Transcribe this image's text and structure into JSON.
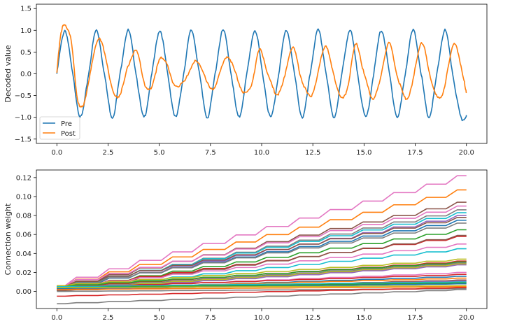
{
  "chart_data": [
    {
      "type": "line",
      "ylabel": "Decoded value",
      "xlim": [
        -1.0,
        21.0
      ],
      "ylim": [
        -1.6,
        1.6
      ],
      "x_ticks": [
        0.0,
        2.5,
        5.0,
        7.5,
        10.0,
        12.5,
        15.0,
        17.5,
        20.0
      ],
      "x_tick_labels": [
        "0.0",
        "2.5",
        "5.0",
        "7.5",
        "10.0",
        "12.5",
        "15.0",
        "17.5",
        "20.0"
      ],
      "y_ticks": [
        -1.5,
        -1.0,
        -0.5,
        0.0,
        0.5,
        1.0,
        1.5
      ],
      "y_tick_labels": [
        "−1.5",
        "−1.0",
        "−0.5",
        "0.0",
        "0.5",
        "1.0",
        "1.5"
      ],
      "grid": false,
      "legend": "lower-left",
      "series": [
        {
          "name": "Pre",
          "color": "#1f77b4",
          "x": [
            0.0,
            0.39,
            0.77,
            1.16,
            1.55,
            1.93,
            2.32,
            2.71,
            3.09,
            3.48,
            3.87,
            4.25,
            4.64,
            5.03,
            5.41,
            5.8,
            6.19,
            6.57,
            6.96,
            7.35,
            7.73,
            8.12,
            8.51,
            8.89,
            9.28,
            9.67,
            10.05,
            10.44,
            10.83,
            11.21,
            11.6,
            11.99,
            12.37,
            12.76,
            13.15,
            13.53,
            13.92,
            14.31,
            14.69,
            15.08,
            15.47,
            15.85,
            16.24,
            16.63,
            17.01,
            17.4,
            17.79,
            18.17,
            18.56,
            18.95,
            19.33,
            19.72,
            20.0
          ],
          "y": [
            0.0,
            1.0,
            0.0,
            -1.0,
            0.0,
            1.0,
            0.0,
            -1.0,
            0.0,
            1.0,
            0.0,
            -1.0,
            0.0,
            1.0,
            0.0,
            -1.0,
            0.0,
            1.0,
            0.0,
            -1.0,
            0.0,
            1.0,
            0.0,
            -1.0,
            0.0,
            1.0,
            0.0,
            -1.0,
            0.0,
            1.0,
            0.0,
            -1.0,
            0.0,
            1.0,
            0.0,
            -1.0,
            0.0,
            1.0,
            0.0,
            -1.0,
            0.0,
            1.0,
            0.0,
            -1.0,
            0.0,
            1.0,
            0.0,
            -1.0,
            0.0,
            1.0,
            0.0,
            -1.0,
            -0.95
          ]
        },
        {
          "name": "Post",
          "color": "#ff7f0e",
          "x": [
            0.0,
            0.2,
            0.45,
            0.7,
            1.0,
            1.25,
            1.55,
            1.95,
            2.3,
            2.75,
            3.1,
            3.5,
            3.9,
            4.3,
            4.6,
            5.0,
            5.3,
            5.7,
            6.2,
            6.7,
            7.1,
            7.5,
            7.8,
            8.3,
            8.7,
            9.1,
            9.5,
            9.9,
            10.3,
            10.7,
            11.0,
            11.5,
            11.9,
            12.3,
            12.6,
            13.1,
            13.5,
            13.9,
            14.2,
            14.6,
            15.0,
            15.4,
            15.7,
            16.2,
            16.6,
            17.0,
            17.3,
            17.8,
            18.2,
            18.6,
            18.9,
            19.4,
            19.8,
            20.0
          ],
          "y": [
            0.0,
            0.95,
            1.08,
            0.75,
            -0.55,
            -0.75,
            -0.2,
            0.75,
            0.55,
            -0.42,
            -0.45,
            0.2,
            0.5,
            -0.25,
            -0.32,
            0.3,
            0.3,
            -0.22,
            -0.2,
            0.27,
            0.1,
            -0.35,
            -0.2,
            0.4,
            0.05,
            -0.42,
            -0.25,
            0.55,
            0.0,
            -0.45,
            -0.28,
            0.6,
            -0.05,
            -0.5,
            -0.3,
            0.65,
            0.0,
            -0.55,
            -0.3,
            0.68,
            0.0,
            -0.55,
            -0.3,
            0.7,
            0.0,
            -0.55,
            -0.35,
            0.72,
            0.0,
            -0.55,
            -0.35,
            0.7,
            0.0,
            -0.42
          ]
        }
      ]
    },
    {
      "type": "line",
      "ylabel": "Connection weight",
      "xlim": [
        -1.0,
        21.0
      ],
      "ylim": [
        -0.018,
        0.128
      ],
      "x_ticks": [
        0.0,
        2.5,
        5.0,
        7.5,
        10.0,
        12.5,
        15.0,
        17.5,
        20.0
      ],
      "x_tick_labels": [
        "0.0",
        "2.5",
        "5.0",
        "7.5",
        "10.0",
        "12.5",
        "15.0",
        "17.5",
        "20.0"
      ],
      "y_ticks": [
        0.0,
        0.02,
        0.04,
        0.06,
        0.08,
        0.1,
        0.12
      ],
      "y_tick_labels": [
        "0.00",
        "0.02",
        "0.04",
        "0.06",
        "0.08",
        "0.10",
        "0.12"
      ],
      "grid": false,
      "step_times": [
        0.4,
        2.0,
        3.5,
        5.1,
        6.6,
        8.2,
        9.7,
        11.3,
        12.8,
        14.4,
        15.9,
        17.5,
        19.0
      ],
      "series": [
        {
          "color": "#e377c2",
          "start": 0.006,
          "end": 0.122
        },
        {
          "color": "#ff7f0e",
          "start": 0.005,
          "end": 0.107
        },
        {
          "color": "#8c564b",
          "start": 0.004,
          "end": 0.094
        },
        {
          "color": "#e377c2",
          "start": 0.006,
          "end": 0.09
        },
        {
          "color": "#7f7f7f",
          "start": 0.003,
          "end": 0.086
        },
        {
          "color": "#17becf",
          "start": 0.004,
          "end": 0.083
        },
        {
          "color": "#9467bd",
          "start": 0.002,
          "end": 0.08
        },
        {
          "color": "#8c564b",
          "start": 0.005,
          "end": 0.078
        },
        {
          "color": "#1f77b4",
          "start": 0.003,
          "end": 0.075
        },
        {
          "color": "#7f7f7f",
          "start": 0.004,
          "end": 0.072
        },
        {
          "color": "#2ca02c",
          "start": 0.002,
          "end": 0.065
        },
        {
          "color": "#d62728",
          "start": 0.003,
          "end": 0.058
        },
        {
          "color": "#8c564b",
          "start": 0.001,
          "end": 0.059
        },
        {
          "color": "#e377c2",
          "start": 0.004,
          "end": 0.05
        },
        {
          "color": "#17becf",
          "start": 0.002,
          "end": 0.045
        },
        {
          "color": "#bcbd22",
          "start": 0.006,
          "end": 0.034
        },
        {
          "color": "#d62728",
          "start": 0.004,
          "end": 0.032
        },
        {
          "color": "#2ca02c",
          "start": 0.005,
          "end": 0.031
        },
        {
          "color": "#7f7f7f",
          "start": 0.003,
          "end": 0.03
        },
        {
          "color": "#bcbd22",
          "start": 0.002,
          "end": 0.029
        },
        {
          "color": "#9467bd",
          "start": 0.001,
          "end": 0.028
        },
        {
          "color": "#e377c2",
          "start": 0.003,
          "end": 0.02
        },
        {
          "color": "#d62728",
          "start": 0.004,
          "end": 0.018
        },
        {
          "color": "#1f77b4",
          "start": 0.002,
          "end": 0.016
        },
        {
          "color": "#ff7f0e",
          "start": 0.003,
          "end": 0.014
        },
        {
          "color": "#8c564b",
          "start": 0.001,
          "end": 0.012
        },
        {
          "color": "#9467bd",
          "start": 0.002,
          "end": 0.011
        },
        {
          "color": "#17becf",
          "start": 0.005,
          "end": 0.01
        },
        {
          "color": "#2ca02c",
          "start": 0.004,
          "end": 0.009
        },
        {
          "color": "#1f77b4",
          "start": 0.003,
          "end": 0.008
        },
        {
          "color": "#bcbd22",
          "start": 0.004,
          "end": 0.006
        },
        {
          "color": "#ff7f0e",
          "start": 0.002,
          "end": 0.005
        },
        {
          "color": "#7f7f7f",
          "start": 0.0,
          "end": 0.003
        },
        {
          "color": "#d62728",
          "start": -0.005,
          "end": 0.004
        },
        {
          "color": "#7f7f7f",
          "start": -0.013,
          "end": 0.002
        }
      ]
    }
  ]
}
